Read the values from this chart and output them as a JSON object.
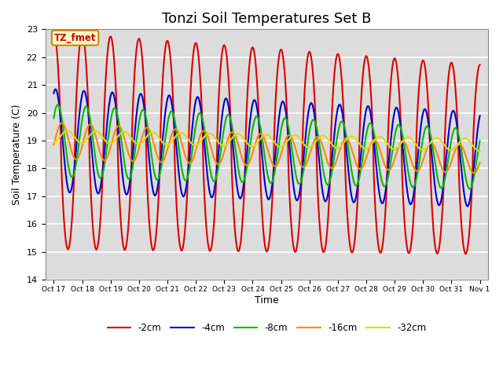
{
  "title": "Tonzi Soil Temperatures Set B",
  "xlabel": "Time",
  "ylabel": "Soil Temperature (C)",
  "ylim": [
    14.0,
    23.0
  ],
  "yticks": [
    14.0,
    15.0,
    16.0,
    17.0,
    18.0,
    19.0,
    20.0,
    21.0,
    22.0,
    23.0
  ],
  "xtick_labels": [
    "Oct 17",
    "Oct 18",
    "Oct 19",
    "Oct 20",
    "Oct 21",
    "Oct 22",
    "Oct 23",
    "Oct 24",
    "Oct 25",
    "Oct 26",
    "Oct 27",
    "Oct 28",
    "Oct 29",
    "Oct 30",
    "Oct 31",
    "Nov 1"
  ],
  "annotation_text": "TZ_fmet",
  "annotation_color": "#cc0000",
  "annotation_bg": "#ffffcc",
  "series_colors": [
    "#dd0000",
    "#0000cc",
    "#00bb00",
    "#ff8800",
    "#dddd00"
  ],
  "series_labels": [
    "-2cm",
    "-4cm",
    "-8cm",
    "-16cm",
    "-32cm"
  ],
  "title_fontsize": 13,
  "bg_color": "#dcdcdc",
  "linewidth": 1.5
}
